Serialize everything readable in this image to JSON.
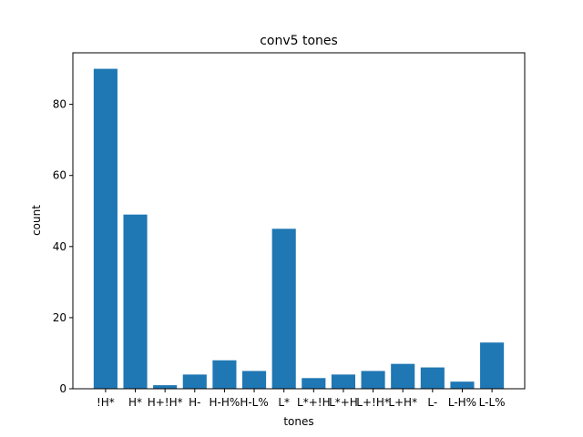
{
  "chart_data": {
    "type": "bar",
    "title": "conv5 tones",
    "xlabel": "tones",
    "ylabel": "count",
    "categories": [
      "!H*",
      "H*",
      "H+!H*",
      "H-",
      "H-H%",
      "H-L%",
      "L*",
      "L*+!H",
      "L*+H",
      "L+!H*",
      "L+H*",
      "L-",
      "L-H%",
      "L-L%"
    ],
    "values": [
      90,
      49,
      1,
      4,
      8,
      5,
      45,
      3,
      4,
      5,
      7,
      6,
      2,
      13
    ],
    "ylim": [
      0,
      94.5
    ],
    "yticks": [
      0,
      20,
      40,
      60,
      80
    ],
    "grid": false,
    "bar_color": "#1f77b4"
  }
}
